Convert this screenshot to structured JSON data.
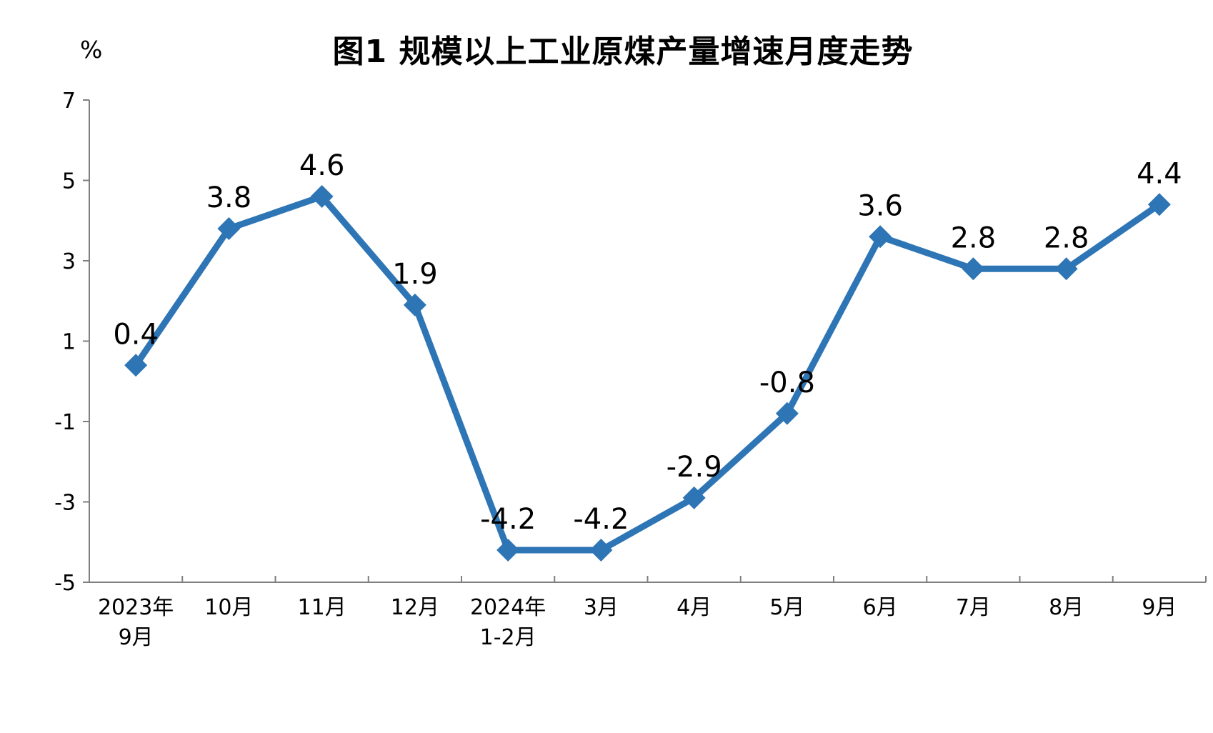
{
  "chart_data": {
    "type": "line",
    "title": "图1  规模以上工业原煤产量增速月度走势",
    "ylabel": "%",
    "categories": [
      {
        "line1": "2023年",
        "line2": "9月"
      },
      {
        "line1": "10月",
        "line2": ""
      },
      {
        "line1": "11月",
        "line2": ""
      },
      {
        "line1": "12月",
        "line2": ""
      },
      {
        "line1": "2024年",
        "line2": "1-2月"
      },
      {
        "line1": "3月",
        "line2": ""
      },
      {
        "line1": "4月",
        "line2": ""
      },
      {
        "line1": "5月",
        "line2": ""
      },
      {
        "line1": "6月",
        "line2": ""
      },
      {
        "line1": "7月",
        "line2": ""
      },
      {
        "line1": "8月",
        "line2": ""
      },
      {
        "line1": "9月",
        "line2": ""
      }
    ],
    "values": [
      0.4,
      3.8,
      4.6,
      1.9,
      -4.2,
      -4.2,
      -2.9,
      -0.8,
      3.6,
      2.8,
      2.8,
      4.4
    ],
    "value_labels": [
      "0.4",
      "3.8",
      "4.6",
      "1.9",
      "-4.2",
      "-4.2",
      "-2.9",
      "-0.8",
      "3.6",
      "2.8",
      "2.8",
      "4.4"
    ],
    "y_ticks": [
      7,
      5,
      3,
      1,
      -1,
      -3,
      -5
    ],
    "ylim": [
      -5,
      7
    ],
    "grid": false,
    "legend": false,
    "marker": "diamond",
    "colors": {
      "line": "#2E75B6",
      "marker": "#2E75B6",
      "axis": "#7F7F7F",
      "text": "#000000"
    }
  }
}
